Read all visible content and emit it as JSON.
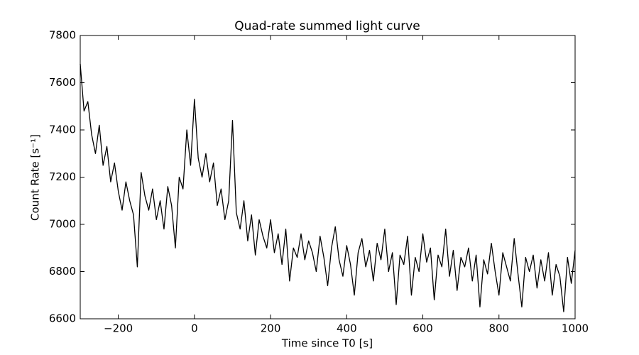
{
  "chart_data": {
    "type": "line",
    "title": "Quad-rate summed light curve",
    "xlabel": "Time since T0 [s]",
    "ylabel": "Count Rate [s⁻¹]",
    "color": "#000000",
    "xlim": [
      -300,
      1000
    ],
    "xticks": [
      {
        "value": -200,
        "label": "−200"
      },
      0,
      200,
      400,
      600,
      800,
      1000
    ],
    "ylim": [
      6600,
      7800
    ],
    "yticks": [
      6600,
      6800,
      7000,
      7200,
      7400,
      7600,
      7800
    ],
    "x": [
      -300,
      -290,
      -280,
      -270,
      -260,
      -250,
      -240,
      -230,
      -220,
      -210,
      -200,
      -190,
      -180,
      -170,
      -160,
      -150,
      -140,
      -130,
      -120,
      -110,
      -100,
      -90,
      -80,
      -70,
      -60,
      -50,
      -40,
      -30,
      -20,
      -10,
      0,
      10,
      20,
      30,
      40,
      50,
      60,
      70,
      80,
      90,
      100,
      110,
      120,
      130,
      140,
      150,
      160,
      170,
      180,
      190,
      200,
      210,
      220,
      230,
      240,
      250,
      260,
      270,
      280,
      290,
      300,
      310,
      320,
      330,
      340,
      350,
      360,
      370,
      380,
      390,
      400,
      410,
      420,
      430,
      440,
      450,
      460,
      470,
      480,
      490,
      500,
      510,
      520,
      530,
      540,
      550,
      560,
      570,
      580,
      590,
      600,
      610,
      620,
      630,
      640,
      650,
      660,
      670,
      680,
      690,
      700,
      710,
      720,
      730,
      740,
      750,
      760,
      770,
      780,
      790,
      800,
      810,
      820,
      830,
      840,
      850,
      860,
      870,
      880,
      890,
      900,
      910,
      920,
      930,
      940,
      950,
      960,
      970,
      980,
      990,
      1000
    ],
    "values": [
      7680,
      7480,
      7520,
      7380,
      7300,
      7420,
      7250,
      7330,
      7180,
      7260,
      7140,
      7060,
      7180,
      7100,
      7040,
      6820,
      7220,
      7120,
      7060,
      7150,
      7020,
      7100,
      6980,
      7160,
      7080,
      6900,
      7200,
      7150,
      7400,
      7250,
      7530,
      7280,
      7200,
      7300,
      7180,
      7260,
      7080,
      7150,
      7020,
      7100,
      7440,
      7050,
      6980,
      7100,
      6930,
      7040,
      6870,
      7020,
      6950,
      6900,
      7020,
      6880,
      6960,
      6830,
      6980,
      6760,
      6900,
      6860,
      6960,
      6850,
      6930,
      6880,
      6800,
      6950,
      6860,
      6740,
      6900,
      6990,
      6850,
      6780,
      6910,
      6830,
      6700,
      6880,
      6940,
      6820,
      6890,
      6760,
      6920,
      6850,
      6980,
      6800,
      6880,
      6660,
      6870,
      6830,
      6950,
      6700,
      6860,
      6800,
      6960,
      6840,
      6900,
      6680,
      6870,
      6820,
      6980,
      6780,
      6890,
      6720,
      6860,
      6820,
      6900,
      6760,
      6870,
      6650,
      6850,
      6790,
      6920,
      6800,
      6700,
      6880,
      6820,
      6760,
      6940,
      6790,
      6650,
      6860,
      6800,
      6870,
      6730,
      6850,
      6760,
      6880,
      6700,
      6830,
      6780,
      6630,
      6860,
      6750,
      6890
    ]
  }
}
